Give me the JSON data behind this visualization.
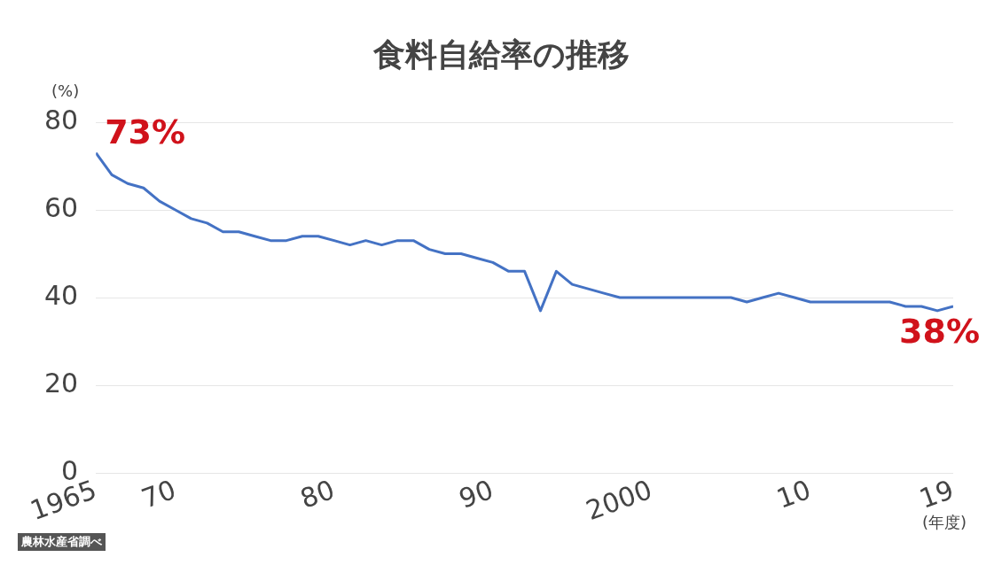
{
  "chart_data": {
    "type": "line",
    "title": "食料自給率の推移",
    "ylabel": "(%)",
    "xlabel": "(年度)",
    "x": [
      1965,
      1966,
      1967,
      1968,
      1969,
      1970,
      1971,
      1972,
      1973,
      1974,
      1975,
      1976,
      1977,
      1978,
      1979,
      1980,
      1981,
      1982,
      1983,
      1984,
      1985,
      1986,
      1987,
      1988,
      1989,
      1990,
      1991,
      1992,
      1993,
      1994,
      1995,
      1996,
      1997,
      1998,
      1999,
      2000,
      2001,
      2002,
      2003,
      2004,
      2005,
      2006,
      2007,
      2008,
      2009,
      2010,
      2011,
      2012,
      2013,
      2014,
      2015,
      2016,
      2017,
      2018,
      2019
    ],
    "series": [
      {
        "color": "#4472c4",
        "values": [
          73,
          68,
          66,
          65,
          62,
          60,
          58,
          57,
          55,
          55,
          54,
          53,
          53,
          54,
          54,
          53,
          52,
          53,
          52,
          53,
          53,
          51,
          50,
          50,
          49,
          48,
          46,
          46,
          37,
          46,
          43,
          42,
          41,
          40,
          40,
          40,
          40,
          40,
          40,
          40,
          40,
          39,
          40,
          41,
          40,
          39,
          39,
          39,
          39,
          39,
          39,
          38,
          38,
          37,
          38
        ]
      }
    ],
    "xlim": [
      1965,
      2019
    ],
    "xticks": [
      1965,
      {
        "value": 1970,
        "label": "70"
      },
      {
        "value": 1980,
        "label": "80"
      },
      {
        "value": 1990,
        "label": "90"
      },
      2000,
      {
        "value": 2010,
        "label": "10"
      },
      {
        "value": 2019,
        "label": "19"
      }
    ],
    "ylim": [
      0,
      80
    ],
    "yticks": [
      0,
      20,
      40,
      60,
      80
    ],
    "grid": "y",
    "legend": false,
    "marker": "none",
    "line_style": "solid",
    "annotations": [
      {
        "text": "73%",
        "x": 1965,
        "y": 73
      },
      {
        "text": "38%",
        "x": 2019,
        "y": 38
      },
      "農林水産省調べ"
    ]
  }
}
